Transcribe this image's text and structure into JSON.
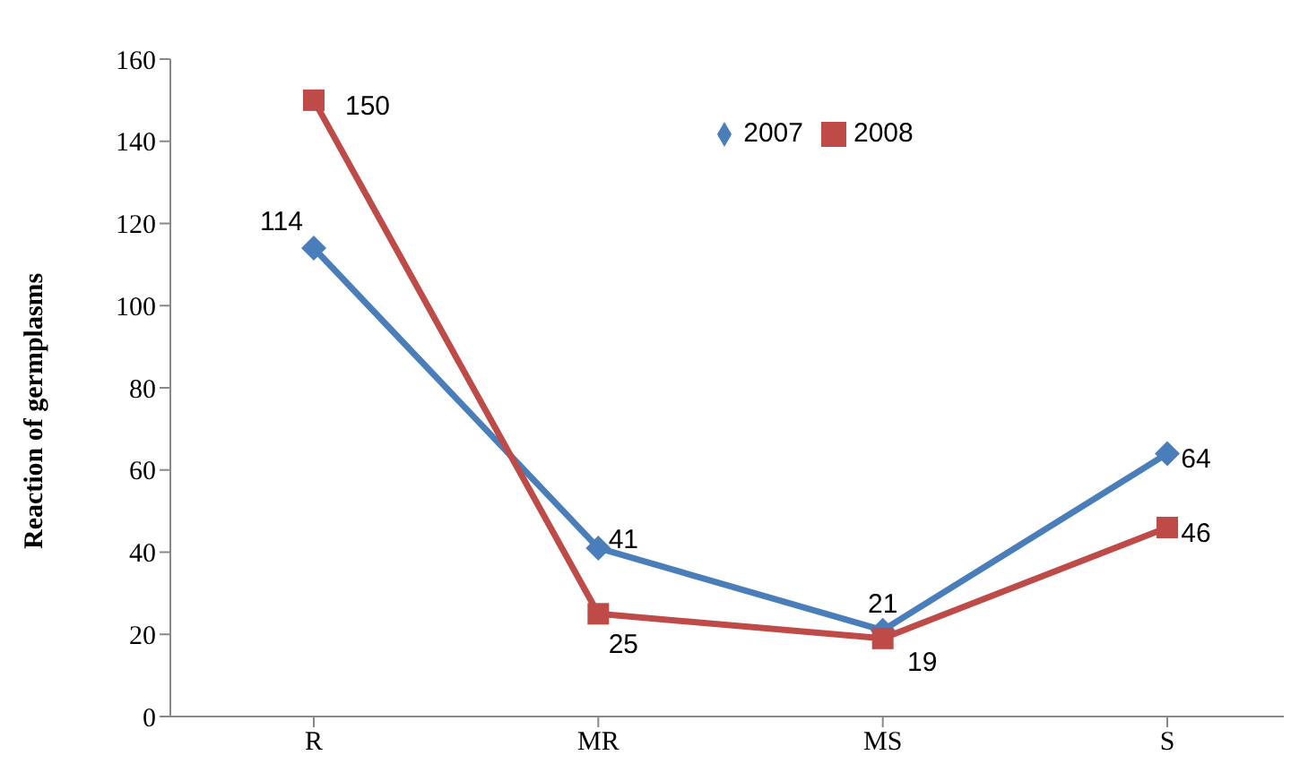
{
  "chart_data": {
    "type": "line",
    "ylabel": "Reaction of germplasms",
    "categories": [
      "R",
      "MR",
      "MS",
      "S"
    ],
    "series": [
      {
        "name": "2007",
        "color": "#4a7ebb",
        "marker": "diamond",
        "values": [
          114,
          41,
          21,
          64
        ]
      },
      {
        "name": "2008",
        "color": "#be4b48",
        "marker": "square",
        "values": [
          150,
          25,
          19,
          46
        ]
      }
    ],
    "ylim": [
      0,
      160
    ],
    "yticks": [
      0,
      20,
      40,
      60,
      80,
      100,
      120,
      140,
      160
    ],
    "grid": false,
    "legend": "top",
    "data_labels": true
  }
}
